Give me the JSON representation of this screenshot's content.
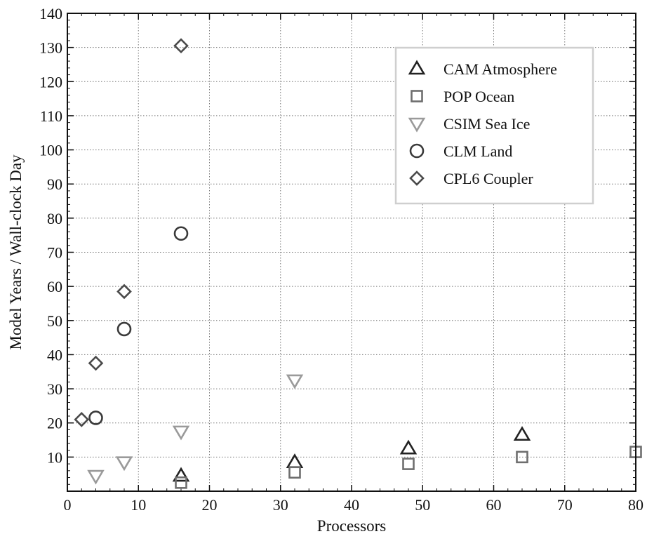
{
  "chart_data": {
    "type": "scatter",
    "title": "",
    "xlabel": "Processors",
    "ylabel": "Model Years / Wall-clock Day",
    "xlim": [
      0,
      80
    ],
    "ylim": [
      0,
      140
    ],
    "xticks": [
      0,
      10,
      20,
      30,
      40,
      50,
      60,
      70,
      80
    ],
    "yticks": [
      10,
      20,
      30,
      40,
      50,
      60,
      70,
      80,
      90,
      100,
      110,
      120,
      130,
      140
    ],
    "grid": true,
    "legend_position": "top-right",
    "series": [
      {
        "name": "CAM Atmosphere",
        "marker": "triangle-up",
        "color": "#222222",
        "points": [
          [
            16,
            4.5
          ],
          [
            32,
            8.5
          ],
          [
            48,
            12.5
          ],
          [
            64,
            16.5
          ]
        ]
      },
      {
        "name": "POP Ocean",
        "marker": "square",
        "color": "#6e6e6e",
        "points": [
          [
            16,
            2.5
          ],
          [
            32,
            5.5
          ],
          [
            48,
            8
          ],
          [
            64,
            10
          ],
          [
            80,
            11.5
          ]
        ]
      },
      {
        "name": "CSIM Sea Ice",
        "marker": "triangle-down",
        "color": "#9a9a9a",
        "points": [
          [
            4,
            4.5
          ],
          [
            8,
            8.5
          ],
          [
            16,
            17.5
          ],
          [
            32,
            32.5
          ]
        ]
      },
      {
        "name": "CLM Land",
        "marker": "circle",
        "color": "#3a3a3a",
        "points": [
          [
            4,
            21.5
          ],
          [
            8,
            47.5
          ],
          [
            16,
            75.5
          ]
        ]
      },
      {
        "name": "CPL6 Coupler",
        "marker": "diamond",
        "color": "#4a4a4a",
        "points": [
          [
            2,
            21
          ],
          [
            4,
            37.5
          ],
          [
            8,
            58.5
          ],
          [
            16,
            130.5
          ]
        ]
      }
    ]
  }
}
